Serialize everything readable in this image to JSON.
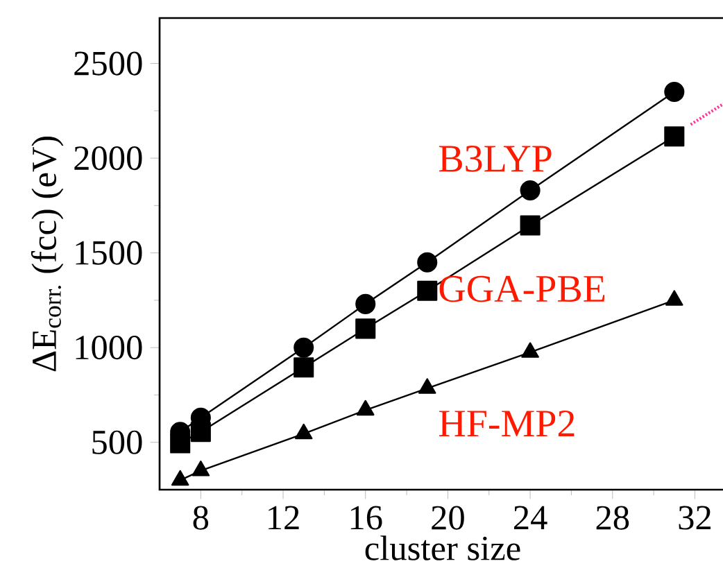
{
  "chart_data": {
    "type": "line",
    "xlabel": "cluster size",
    "ylabel": "ΔE$_{corr.}$ (fcc) (eV)",
    "xlim": [
      6,
      33.5
    ],
    "ylim": [
      250,
      2740
    ],
    "xticks": [
      8,
      12,
      16,
      20,
      24,
      28,
      32
    ],
    "yticks": [
      500,
      1000,
      1500,
      2000,
      2500
    ],
    "grid": false,
    "legend": false,
    "series": [
      {
        "name": "B3LYP",
        "color": "#000000",
        "marker": "circle",
        "x": [
          7,
          8,
          13,
          16,
          19,
          24,
          31
        ],
        "values": [
          555,
          630,
          1000,
          1230,
          1450,
          1830,
          2350
        ]
      },
      {
        "name": "GGA-PBE",
        "color": "#000000",
        "marker": "square",
        "x": [
          7,
          8,
          13,
          16,
          19,
          24,
          31
        ],
        "values": [
          495,
          555,
          895,
          1100,
          1300,
          1645,
          2115
        ]
      },
      {
        "name": "HF-MP2",
        "color": "#000000",
        "marker": "triangle",
        "x": [
          7,
          8,
          13,
          16,
          19,
          24,
          31
        ],
        "values": [
          300,
          350,
          545,
          670,
          785,
          975,
          1250
        ]
      },
      {
        "color": "#ff3399",
        "marker": "none",
        "line_style": "dotted",
        "x": [
          31.8,
          33.4
        ],
        "values": [
          2178,
          2288
        ]
      }
    ]
  }
}
